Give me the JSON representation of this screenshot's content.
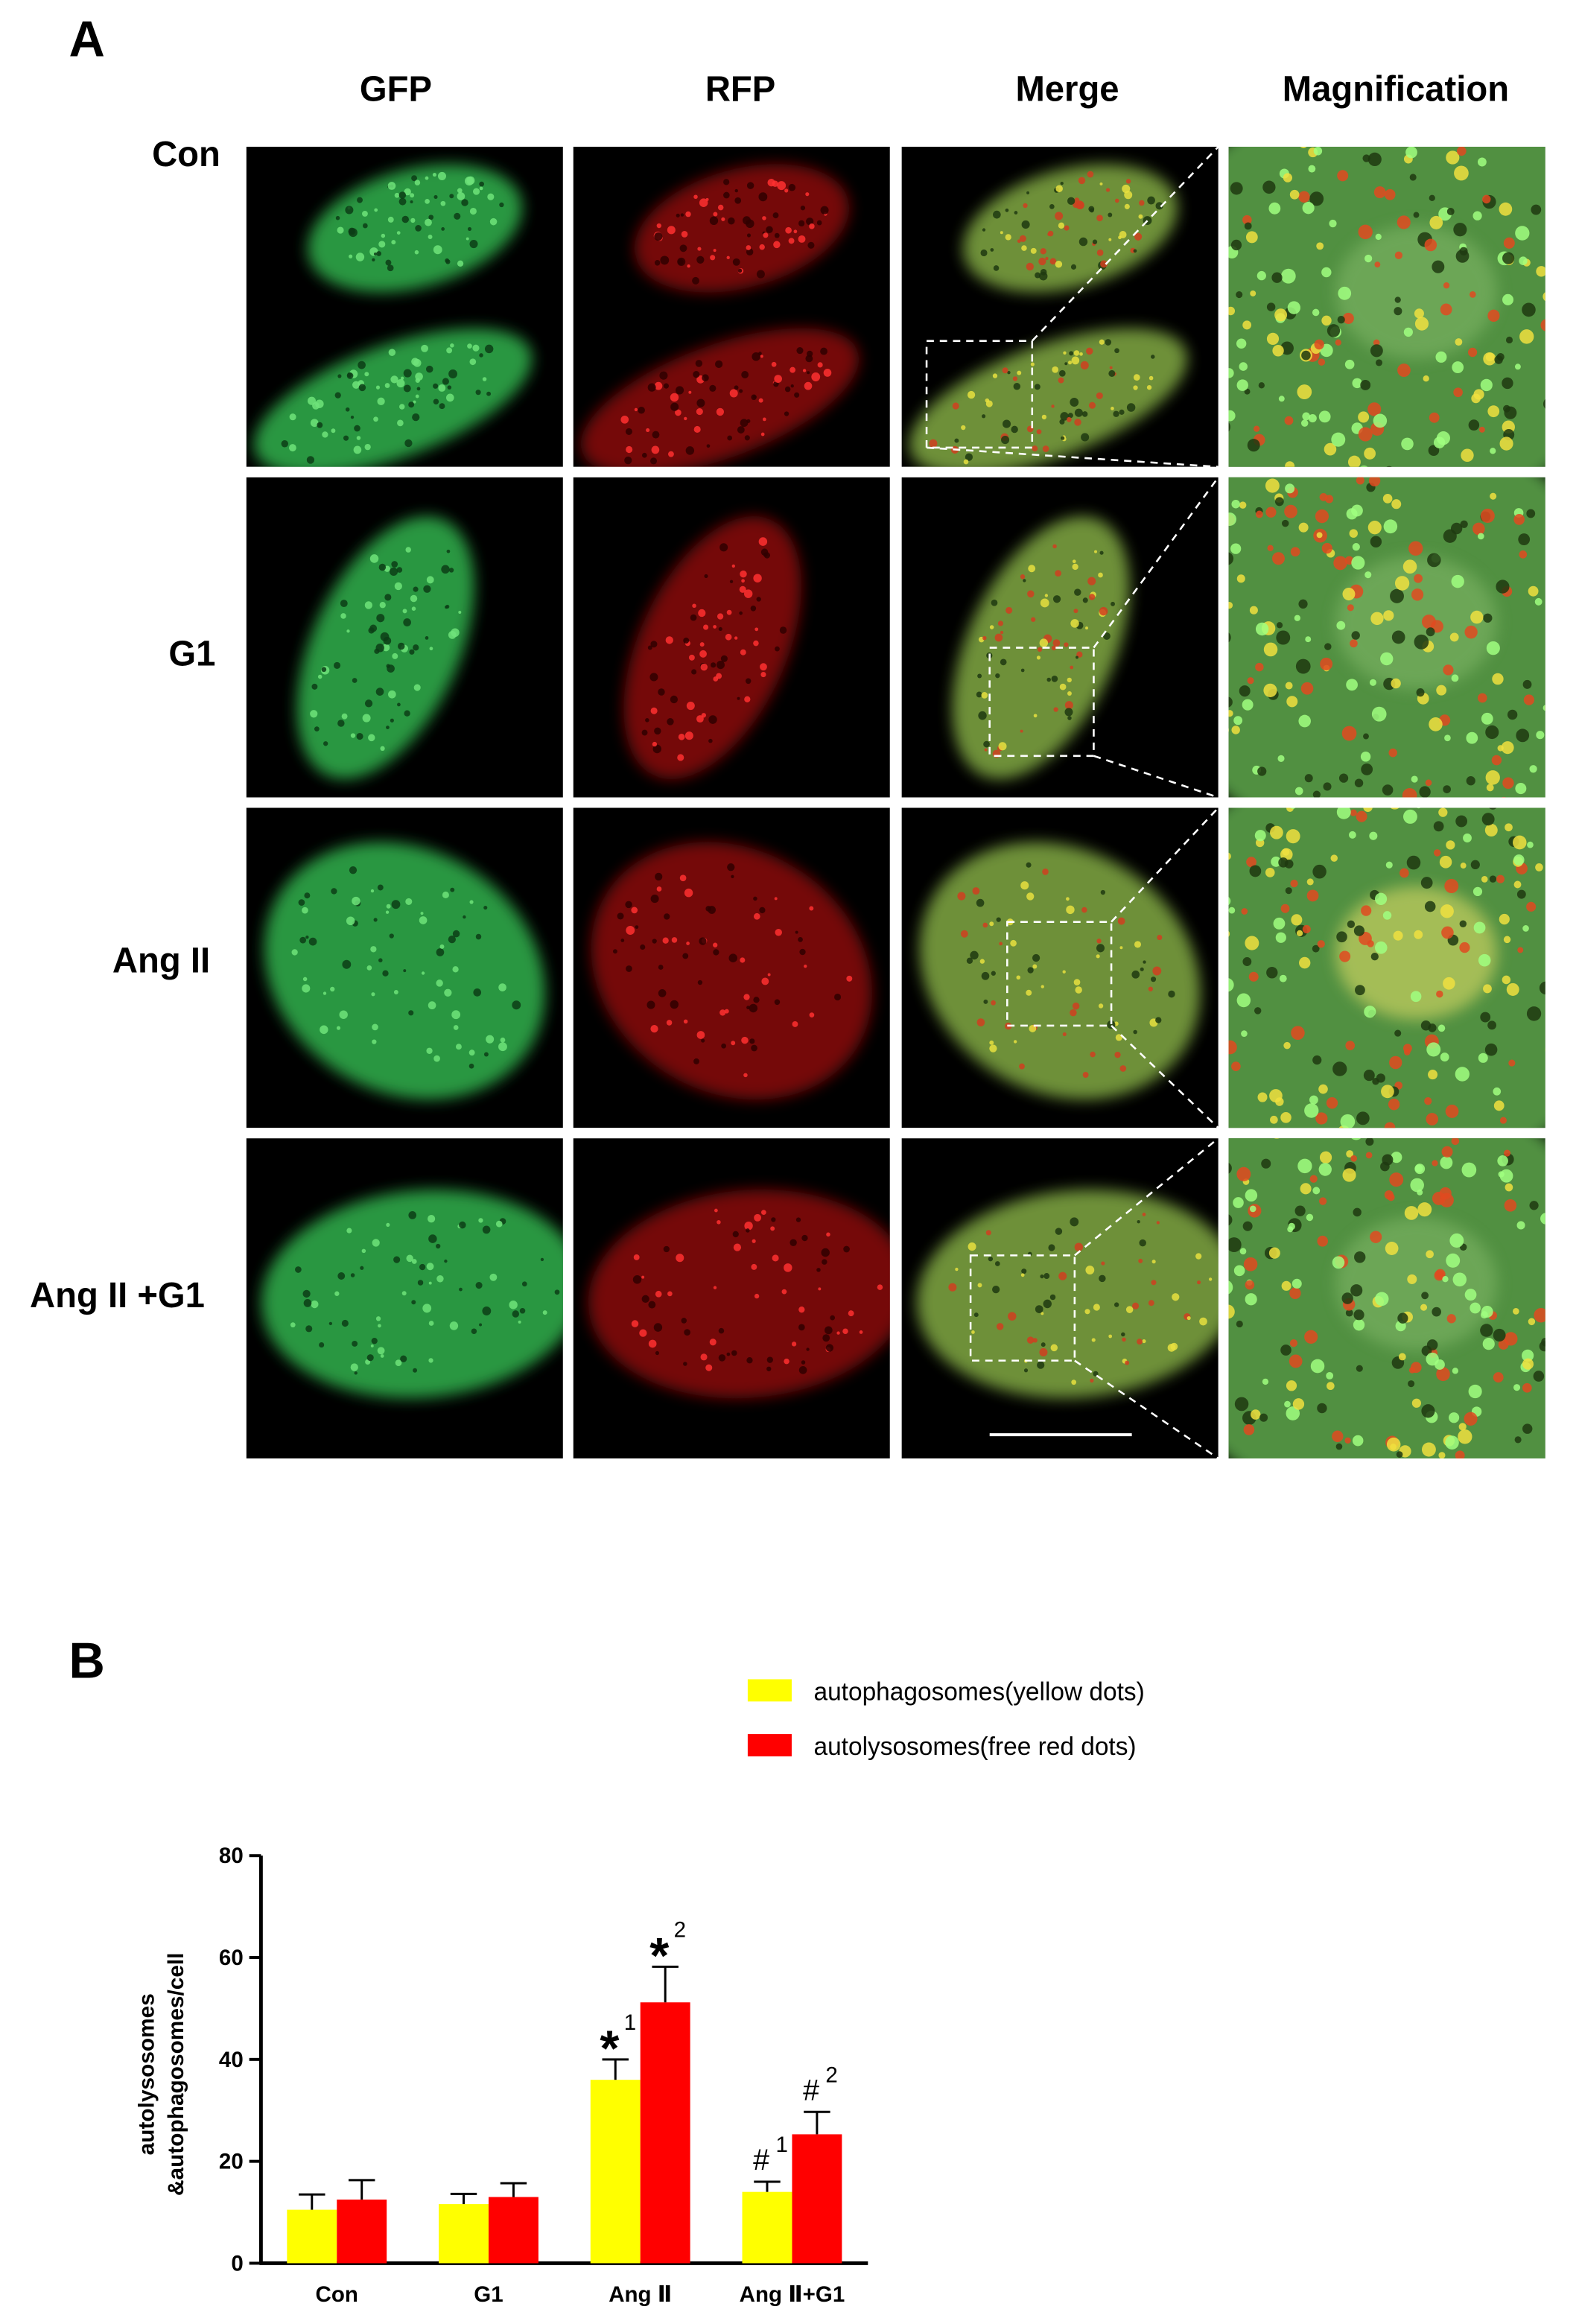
{
  "panel_a": {
    "label": "A",
    "columns": [
      "GFP",
      "RFP",
      "Merge",
      "Magnification"
    ],
    "rows": [
      "Con",
      "G1",
      "Ang II",
      "Ang II +G1"
    ]
  },
  "chart_data": {
    "type": "bar",
    "panel_label": "B",
    "categories": [
      "Con",
      "G1",
      "Ang Ⅱ",
      "Ang Ⅱ+G1"
    ],
    "y_label": [
      "autolysosomes",
      "&autophagosomes/cell"
    ],
    "ylim": [
      0,
      80
    ],
    "yticks": [
      0,
      20,
      40,
      60,
      80
    ],
    "series": [
      {
        "name": "autophagosomes(yellow dots)",
        "color": "#ffff00",
        "values": [
          10.5,
          11.6,
          36,
          14
        ],
        "errors": [
          3,
          2,
          4,
          2
        ],
        "annotations": [
          null,
          null,
          {
            "symbol": "*",
            "sup": "1"
          },
          {
            "symbol": "#",
            "sup": "1"
          }
        ]
      },
      {
        "name": "autolysosomes(free red dots)",
        "color": "#ff0000",
        "values": [
          12.5,
          13,
          51.2,
          25.3
        ],
        "errors": [
          3.8,
          2.7,
          7,
          4.4
        ],
        "annotations": [
          null,
          null,
          {
            "symbol": "*",
            "sup": "2"
          },
          {
            "symbol": "#",
            "sup": "2"
          }
        ]
      }
    ]
  }
}
